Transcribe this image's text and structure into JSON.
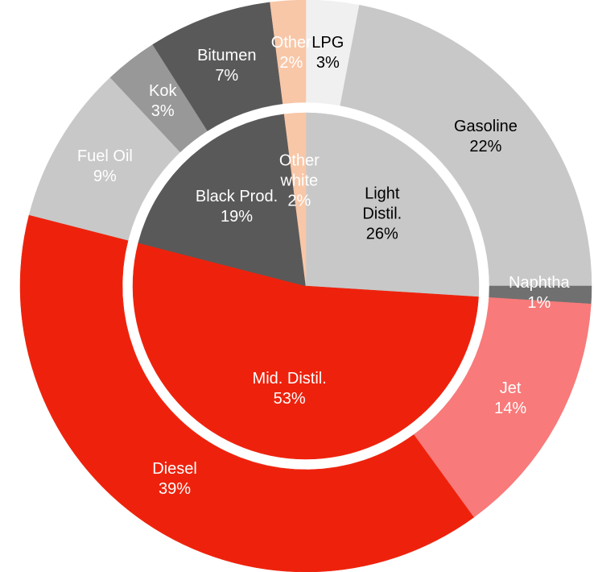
{
  "chart_data": {
    "type": "donut",
    "rings": [
      {
        "categories": [
          "Light Distil.",
          "Mid. Distil.",
          "Black Prod.",
          "Other white"
        ],
        "values": [
          26,
          53,
          19,
          2
        ],
        "value_labels": [
          "26%",
          "53%",
          "19%",
          "2%"
        ],
        "colors": [
          "#c8c8c8",
          "#ee220c",
          "#595959",
          "#f8c7a8"
        ],
        "label_colors": [
          "#000000",
          "#ffffff",
          "#ffffff",
          "#ffffff"
        ]
      },
      {
        "categories": [
          "LPG",
          "Gasoline",
          "Naphtha",
          "Jet",
          "Diesel",
          "Fuel Oil",
          "Kok",
          "Bitumen",
          "Other"
        ],
        "values": [
          3,
          22,
          1,
          14,
          39,
          9,
          3,
          7,
          2
        ],
        "value_labels": [
          "3%",
          "22%",
          "1%",
          "14%",
          "39%",
          "9%",
          "3%",
          "7%",
          "2%"
        ],
        "colors": [
          "#f0f0f0",
          "#c8c8c8",
          "#707070",
          "#f87a7a",
          "#ee220c",
          "#c8c8c8",
          "#989898",
          "#595959",
          "#f8c7a8"
        ],
        "label_colors": [
          "#000000",
          "#000000",
          "#ffffff",
          "#ffffff",
          "#ffffff",
          "#ffffff",
          "#ffffff",
          "#ffffff",
          "#ffffff"
        ]
      }
    ]
  }
}
